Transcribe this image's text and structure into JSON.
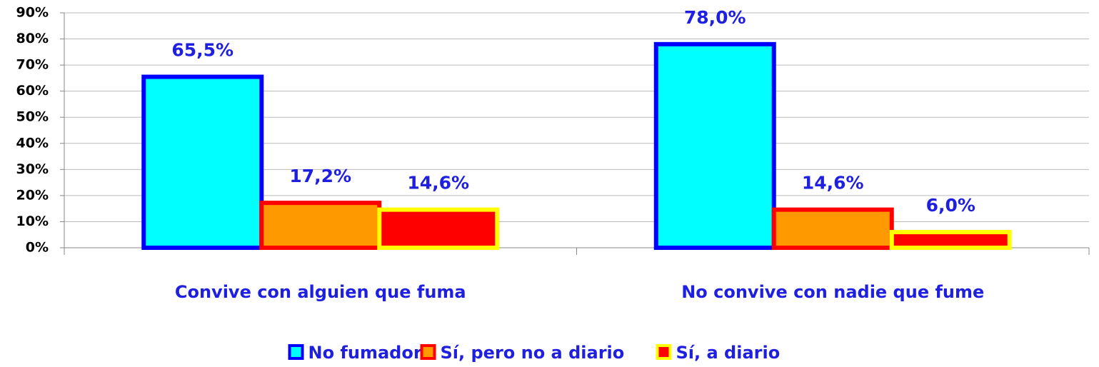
{
  "chart_data": {
    "type": "bar",
    "categories": [
      "Convive con alguien que fuma",
      "No convive con nadie que fume"
    ],
    "series": [
      {
        "name": "No fumador",
        "color": "#00ffff",
        "border": "#0000ff",
        "values": [
          65.5,
          78.0
        ],
        "value_labels": [
          "65,5%",
          "78,0%"
        ]
      },
      {
        "name": "Sí, pero no a diario",
        "color": "#ff9900",
        "border": "#ff0000",
        "values": [
          17.2,
          14.6
        ],
        "value_labels": [
          "17,2%",
          "14,6%"
        ]
      },
      {
        "name": "Sí, a diario",
        "color": "#ff0000",
        "border": "#ffff00",
        "values": [
          14.6,
          6.0
        ],
        "value_labels": [
          "14,6%",
          "6,0%"
        ]
      }
    ],
    "ylim": [
      0,
      90
    ],
    "yticks": [
      {
        "value": 0,
        "label": "0%"
      },
      {
        "value": 10,
        "label": "10%"
      },
      {
        "value": 20,
        "label": "20%"
      },
      {
        "value": 30,
        "label": "30%"
      },
      {
        "value": 40,
        "label": "40%"
      },
      {
        "value": 50,
        "label": "50%"
      },
      {
        "value": 60,
        "label": "60%"
      },
      {
        "value": 70,
        "label": "70%"
      },
      {
        "value": 80,
        "label": "80%"
      },
      {
        "value": 90,
        "label": "90%"
      }
    ],
    "grid": true,
    "legend": "bottom"
  }
}
